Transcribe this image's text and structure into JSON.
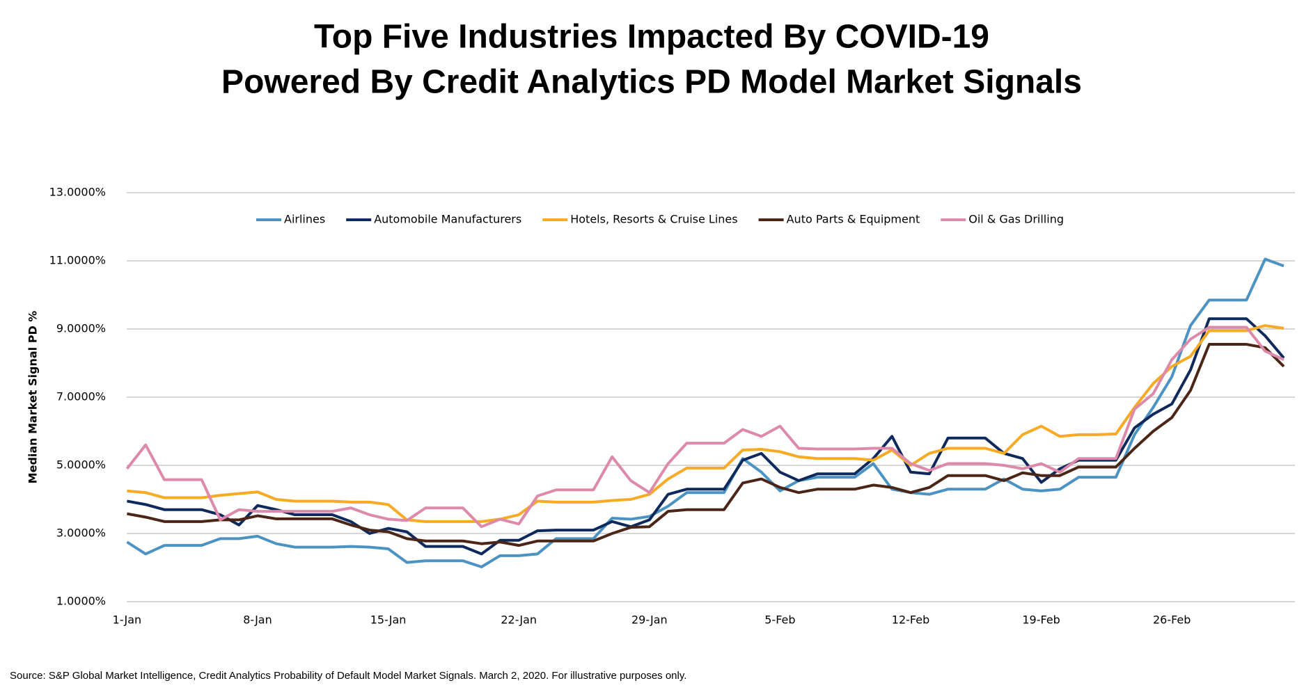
{
  "chart_data": {
    "type": "line",
    "title": "Top Five Industries Impacted By COVID-19",
    "subtitle": "Powered By Credit Analytics PD Model Market Signals",
    "ylabel": "Median Market Signal PD %",
    "source": "Source: S&P Global Market Intelligence, Credit Analytics Probability of Default Model Market Signals. March 2, 2020. For illustrative purposes only.",
    "categories": [
      "1-Jan",
      null,
      null,
      null,
      null,
      null,
      null,
      "8-Jan",
      null,
      null,
      null,
      null,
      null,
      null,
      "15-Jan",
      null,
      null,
      null,
      null,
      null,
      null,
      "22-Jan",
      null,
      null,
      null,
      null,
      null,
      null,
      "29-Jan",
      null,
      null,
      null,
      null,
      null,
      null,
      "5-Feb",
      null,
      null,
      null,
      null,
      null,
      null,
      "12-Feb",
      null,
      null,
      null,
      null,
      null,
      null,
      "19-Feb",
      null,
      null,
      null,
      null,
      null,
      null,
      "26-Feb",
      null,
      null,
      null,
      null,
      null,
      null
    ],
    "ylim": [
      1,
      13
    ],
    "yticks": [
      {
        "value": 1,
        "label": "1.0000%"
      },
      {
        "value": 3,
        "label": "3.0000%"
      },
      {
        "value": 5,
        "label": "5.0000%"
      },
      {
        "value": 7,
        "label": "7.0000%"
      },
      {
        "value": 9,
        "label": "9.0000%"
      },
      {
        "value": 11,
        "label": "11.0000%"
      },
      {
        "value": 13,
        "label": "13.0000%"
      }
    ],
    "grid": true,
    "legend": "top",
    "series": [
      {
        "name": "Airlines",
        "color": "#4b93c3",
        "values": [
          2.75,
          2.4,
          2.65,
          2.65,
          2.65,
          2.85,
          2.85,
          2.92,
          2.7,
          2.6,
          2.6,
          2.6,
          2.62,
          2.6,
          2.55,
          2.15,
          2.2,
          2.2,
          2.2,
          2.02,
          2.35,
          2.35,
          2.4,
          2.85,
          2.85,
          2.85,
          3.45,
          3.42,
          3.5,
          3.8,
          4.2,
          4.2,
          4.2,
          5.2,
          4.8,
          4.25,
          4.55,
          4.65,
          4.65,
          4.65,
          5.05,
          4.3,
          4.2,
          4.15,
          4.3,
          4.3,
          4.3,
          4.6,
          4.3,
          4.25,
          4.3,
          4.65,
          4.65,
          4.65,
          5.9,
          6.7,
          7.6,
          9.1,
          9.85,
          9.85,
          9.85,
          11.05,
          10.85
        ]
      },
      {
        "name": "Automobile Manufacturers",
        "color": "#0e2a5c",
        "values": [
          3.95,
          3.85,
          3.7,
          3.7,
          3.7,
          3.55,
          3.25,
          3.82,
          3.7,
          3.55,
          3.55,
          3.55,
          3.35,
          3.0,
          3.15,
          3.05,
          2.62,
          2.62,
          2.62,
          2.4,
          2.8,
          2.8,
          3.08,
          3.1,
          3.1,
          3.1,
          3.35,
          3.2,
          3.4,
          4.15,
          4.3,
          4.3,
          4.3,
          5.15,
          5.35,
          4.8,
          4.55,
          4.75,
          4.75,
          4.75,
          5.2,
          5.85,
          4.8,
          4.75,
          5.8,
          5.8,
          5.8,
          5.35,
          5.2,
          4.5,
          4.9,
          5.15,
          5.15,
          5.15,
          6.1,
          6.5,
          6.8,
          7.8,
          9.3,
          9.3,
          9.3,
          8.8,
          8.15
        ]
      },
      {
        "name": "Hotels, Resorts & Cruise Lines",
        "color": "#f7aa23",
        "values": [
          4.25,
          4.2,
          4.05,
          4.05,
          4.05,
          4.12,
          4.17,
          4.22,
          4.0,
          3.95,
          3.95,
          3.95,
          3.92,
          3.92,
          3.85,
          3.4,
          3.35,
          3.35,
          3.35,
          3.35,
          3.42,
          3.55,
          3.95,
          3.92,
          3.92,
          3.92,
          3.97,
          4.0,
          4.15,
          4.6,
          4.92,
          4.92,
          4.92,
          5.45,
          5.47,
          5.4,
          5.25,
          5.2,
          5.2,
          5.2,
          5.15,
          5.45,
          5.0,
          5.35,
          5.5,
          5.5,
          5.5,
          5.35,
          5.9,
          6.15,
          5.85,
          5.9,
          5.9,
          5.92,
          6.7,
          7.4,
          7.9,
          8.2,
          8.95,
          8.95,
          8.95,
          9.1,
          9.02
        ]
      },
      {
        "name": "Auto Parts & Equipment",
        "color": "#4b2617",
        "values": [
          3.58,
          3.48,
          3.35,
          3.35,
          3.35,
          3.4,
          3.4,
          3.52,
          3.43,
          3.43,
          3.43,
          3.43,
          3.25,
          3.1,
          3.05,
          2.85,
          2.78,
          2.78,
          2.78,
          2.7,
          2.75,
          2.65,
          2.78,
          2.78,
          2.78,
          2.78,
          3.0,
          3.18,
          3.2,
          3.65,
          3.7,
          3.7,
          3.7,
          4.48,
          4.6,
          4.35,
          4.2,
          4.3,
          4.3,
          4.3,
          4.42,
          4.35,
          4.2,
          4.35,
          4.7,
          4.7,
          4.7,
          4.55,
          4.78,
          4.7,
          4.7,
          4.95,
          4.95,
          4.95,
          5.5,
          6.0,
          6.4,
          7.2,
          8.55,
          8.55,
          8.55,
          8.45,
          7.9
        ]
      },
      {
        "name": "Oil & Gas Drilling",
        "color": "#dd8aaa",
        "values": [
          4.9,
          5.6,
          4.58,
          4.58,
          4.58,
          3.4,
          3.7,
          3.65,
          3.65,
          3.65,
          3.65,
          3.65,
          3.75,
          3.55,
          3.42,
          3.38,
          3.75,
          3.75,
          3.75,
          3.2,
          3.42,
          3.28,
          4.1,
          4.28,
          4.28,
          4.28,
          5.25,
          4.55,
          4.2,
          5.05,
          5.65,
          5.65,
          5.65,
          6.05,
          5.85,
          6.15,
          5.5,
          5.48,
          5.48,
          5.48,
          5.5,
          5.5,
          5.05,
          4.85,
          5.05,
          5.05,
          5.05,
          5.0,
          4.9,
          5.05,
          4.8,
          5.2,
          5.2,
          5.2,
          6.65,
          7.1,
          8.1,
          8.7,
          9.05,
          9.05,
          9.05,
          8.35,
          8.1
        ]
      }
    ]
  }
}
